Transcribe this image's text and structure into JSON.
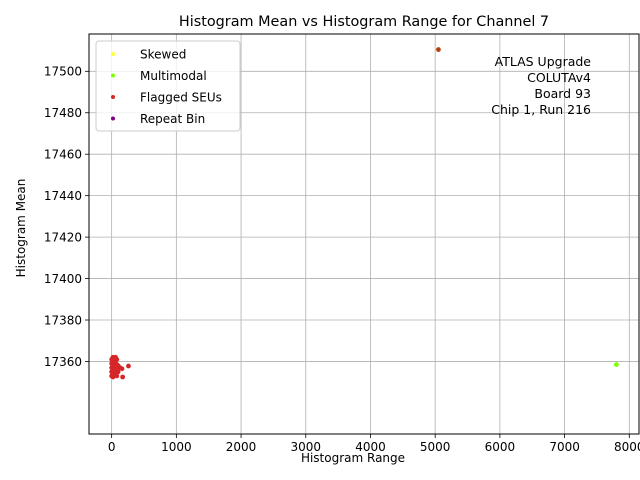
{
  "chart_data": {
    "type": "scatter",
    "title": "Histogram Mean vs Histogram Range for Channel 7",
    "xlabel": "Histogram Range",
    "ylabel": "Histogram Mean",
    "xlim": [
      -350,
      8150
    ],
    "ylim": [
      17325,
      17518
    ],
    "xticks": [
      0,
      1000,
      2000,
      3000,
      4000,
      5000,
      6000,
      7000,
      8000
    ],
    "xtick_labels": [
      "0",
      "1000",
      "2000",
      "3000",
      "4000",
      "5000",
      "6000",
      "7000",
      "8000"
    ],
    "yticks": [
      17360,
      17380,
      17400,
      17420,
      17440,
      17460,
      17480,
      17500
    ],
    "ytick_labels": [
      "17360",
      "17380",
      "17400",
      "17420",
      "17440",
      "17460",
      "17480",
      "17500"
    ],
    "grid": true,
    "legend_position": "top-left",
    "annotation": {
      "lines": [
        "ATLAS Upgrade",
        "COLUTAv4",
        "Board 93",
        "Chip 1, Run 216"
      ],
      "position": "top-right"
    },
    "series": [
      {
        "name": "Skewed",
        "color": "#ffff33",
        "points": []
      },
      {
        "name": "Multimodal",
        "color": "#7fff00",
        "points": [
          [
            7800,
            17358.5
          ]
        ]
      },
      {
        "name": "Flagged SEUs",
        "color": "#d62728",
        "points": [
          [
            0,
            17361
          ],
          [
            0,
            17359
          ],
          [
            0,
            17357
          ],
          [
            0,
            17355
          ],
          [
            0,
            17353
          ],
          [
            20,
            17362
          ],
          [
            20,
            17360
          ],
          [
            20,
            17358
          ],
          [
            20,
            17356
          ],
          [
            20,
            17354
          ],
          [
            20,
            17352.5
          ],
          [
            40,
            17361.5
          ],
          [
            40,
            17359.5
          ],
          [
            40,
            17357.5
          ],
          [
            40,
            17355.5
          ],
          [
            40,
            17353.5
          ],
          [
            60,
            17362
          ],
          [
            60,
            17360
          ],
          [
            60,
            17358
          ],
          [
            60,
            17356
          ],
          [
            60,
            17354
          ],
          [
            80,
            17361
          ],
          [
            80,
            17358.5
          ],
          [
            80,
            17355
          ],
          [
            80,
            17353
          ],
          [
            100,
            17358
          ],
          [
            100,
            17356.5
          ],
          [
            100,
            17355
          ],
          [
            130,
            17357
          ],
          [
            160,
            17356.5
          ],
          [
            170,
            17352.5
          ],
          [
            260,
            17357.8
          ]
        ]
      },
      {
        "name": "Repeat Bin",
        "color": "#800080",
        "points": []
      },
      {
        "name": "",
        "color": "#b5400a",
        "points": [
          [
            5050,
            17510.5
          ]
        ]
      }
    ]
  }
}
